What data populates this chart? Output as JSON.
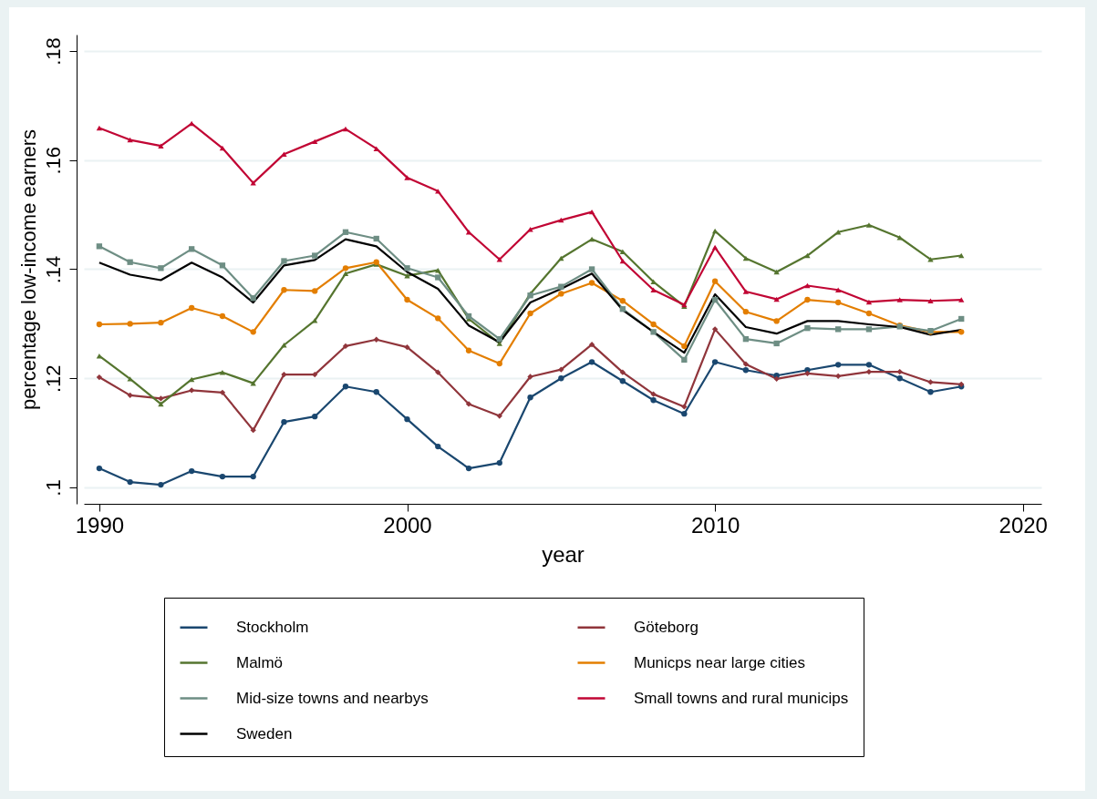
{
  "chart_data": {
    "type": "line",
    "xlabel": "year",
    "ylabel": "percentage low-income earners",
    "x": [
      1990,
      1991,
      1992,
      1993,
      1994,
      1995,
      1996,
      1997,
      1998,
      1999,
      2000,
      2001,
      2002,
      2003,
      2004,
      2005,
      2006,
      2007,
      2008,
      2009,
      2010,
      2011,
      2012,
      2013,
      2014,
      2015,
      2016,
      2017,
      2018
    ],
    "xlim": [
      1989.5,
      2020.6
    ],
    "xticks": [
      1990,
      2000,
      2010,
      2020
    ],
    "ylim": [
      0.097,
      0.183
    ],
    "yticks": [
      {
        "value": 0.1,
        "label": ".1"
      },
      {
        "value": 0.12,
        "label": ".12"
      },
      {
        "value": 0.14,
        "label": ".14"
      },
      {
        "value": 0.16,
        "label": ".16"
      },
      {
        "value": 0.18,
        "label": ".18"
      }
    ],
    "grid": "y",
    "legend": "bottom",
    "line_style": "solid",
    "series": [
      {
        "name": "Stockholm",
        "color": "#1a476f",
        "marker": "circle",
        "values": [
          0.1035,
          0.101,
          0.1005,
          0.103,
          0.102,
          0.102,
          0.112,
          0.113,
          0.1185,
          0.1175,
          0.1125,
          0.1075,
          0.1035,
          0.1045,
          0.1165,
          0.12,
          0.123,
          0.1195,
          0.116,
          0.1135,
          0.123,
          0.1215,
          0.1205,
          0.1215,
          0.1225,
          0.1225,
          0.12,
          0.1175,
          0.1185
        ]
      },
      {
        "name": "Göteborg",
        "color": "#90353b",
        "marker": "diamond",
        "values": [
          0.1202,
          0.1169,
          0.1163,
          0.1178,
          0.1174,
          0.1105,
          0.1207,
          0.1207,
          0.1259,
          0.1271,
          0.1257,
          0.1211,
          0.1153,
          0.1131,
          0.1203,
          0.1216,
          0.1262,
          0.1211,
          0.1171,
          0.1148,
          0.129,
          0.1226,
          0.1199,
          0.1209,
          0.1204,
          0.1212,
          0.1212,
          0.1193,
          0.1189
        ]
      },
      {
        "name": "Malmö",
        "color": "#55752f",
        "marker": "triangle",
        "values": [
          0.1241,
          0.1199,
          0.1153,
          0.1198,
          0.1211,
          0.1191,
          0.1261,
          0.1306,
          0.1392,
          0.1409,
          0.1388,
          0.1398,
          0.1309,
          0.1264,
          0.1355,
          0.142,
          0.1455,
          0.1432,
          0.1377,
          0.1332,
          0.147,
          0.142,
          0.1395,
          0.1425,
          0.1468,
          0.1481,
          0.1458,
          0.1418,
          0.1425
        ]
      },
      {
        "name": "Municps near large cities",
        "color": "#e37e00",
        "marker": "circle",
        "values": [
          0.1299,
          0.13,
          0.1302,
          0.1329,
          0.1314,
          0.1285,
          0.1362,
          0.136,
          0.1402,
          0.1413,
          0.1344,
          0.131,
          0.1251,
          0.1227,
          0.1319,
          0.1355,
          0.1375,
          0.1342,
          0.1299,
          0.1259,
          0.1378,
          0.1322,
          0.1305,
          0.1344,
          0.1339,
          0.1319,
          0.1297,
          0.1285,
          0.1285
        ]
      },
      {
        "name": "Mid-size towns and nearbys",
        "color": "#6e8e84",
        "marker": "square",
        "values": [
          0.1442,
          0.1413,
          0.1402,
          0.1437,
          0.1407,
          0.1347,
          0.1415,
          0.1425,
          0.1468,
          0.1456,
          0.1402,
          0.1385,
          0.1314,
          0.1272,
          0.1352,
          0.1368,
          0.14,
          0.1327,
          0.1285,
          0.1234,
          0.1344,
          0.1272,
          0.1264,
          0.1292,
          0.129,
          0.129,
          0.1295,
          0.1287,
          0.1309
        ]
      },
      {
        "name": "Small towns and rural municips",
        "color": "#c10534",
        "marker": "triangle",
        "values": [
          0.1659,
          0.1637,
          0.1626,
          0.1667,
          0.1622,
          0.1558,
          0.1611,
          0.1634,
          0.1657,
          0.1621,
          0.1568,
          0.1543,
          0.1468,
          0.1418,
          0.1473,
          0.149,
          0.1505,
          0.1415,
          0.1362,
          0.1335,
          0.144,
          0.1359,
          0.1345,
          0.137,
          0.1362,
          0.134,
          0.1344,
          0.1342,
          0.1344
        ]
      },
      {
        "name": "Sweden",
        "color": "#000000",
        "marker": "none",
        "values": [
          0.1412,
          0.139,
          0.138,
          0.1412,
          0.1385,
          0.1339,
          0.1407,
          0.1417,
          0.1455,
          0.1442,
          0.1395,
          0.1364,
          0.1297,
          0.1266,
          0.1339,
          0.1364,
          0.1392,
          0.1325,
          0.1285,
          0.1247,
          0.1354,
          0.1294,
          0.1282,
          0.1305,
          0.1305,
          0.1299,
          0.1294,
          0.128,
          0.1289
        ]
      }
    ]
  }
}
